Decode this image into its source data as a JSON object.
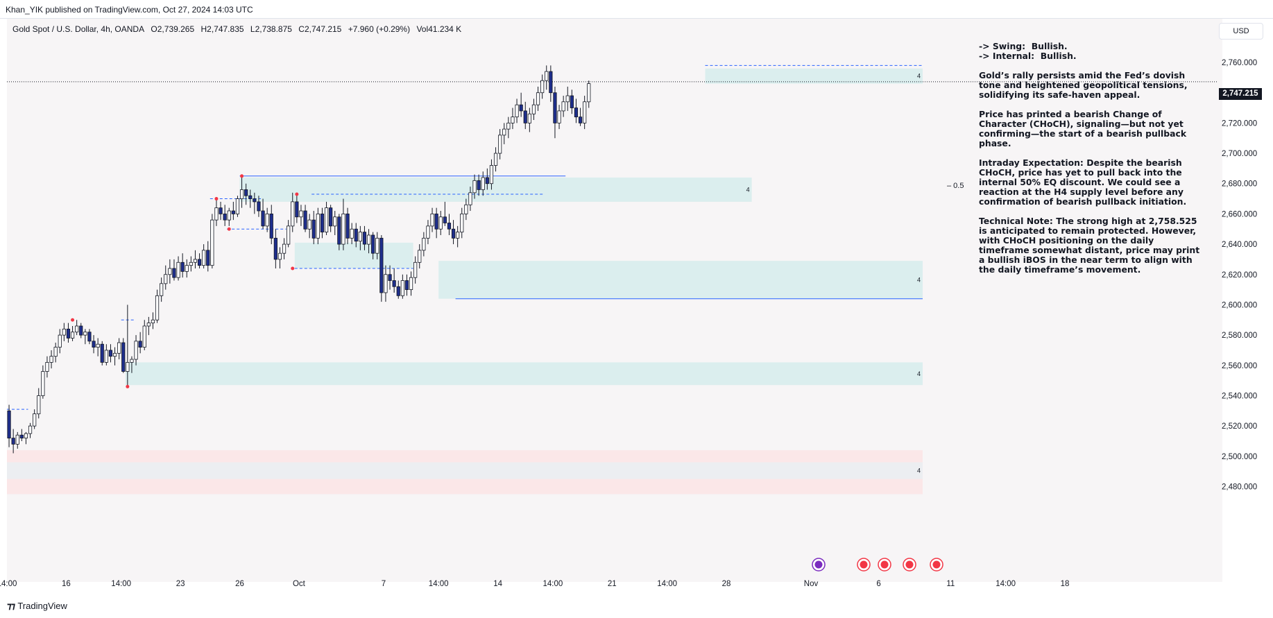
{
  "header": {
    "published": "Khan_YIK published on TradingView.com, Oct 27, 2024 14:03 UTC"
  },
  "legend": {
    "symbol": "Gold Spot / U.S. Dollar, 4h, OANDA",
    "open": "O2,739.265",
    "high": "H2,747.835",
    "low": "L2,738.875",
    "close": "C2,747.215",
    "change": "+7.960 (+0.29%)",
    "volume": "Vol41.234 K"
  },
  "currency": "USD",
  "last_price_label": "2,747.215",
  "notes": {
    "swing": "-> Swing:  Bullish.",
    "internal": "-> Internal:  Bullish.",
    "p1": "Gold’s rally persists amid the Fed’s dovish tone and heightened geopolitical tensions, solidifying its safe-haven appeal.",
    "p2": "Price has printed a bearish Change of Character (CHoCH), signaling—but not yet confirming—the start of a bearish pullback phase.",
    "p3": "Intraday Expectation: Despite the bearish CHoCH, price has yet to pull back into the internal 50% EQ discount. We could see a reaction at the H4 supply level before any confirmation of bearish pullback initiation.",
    "p4": "Technical Note: The strong high at 2,758.525 is anticipated to remain protected. However, with CHoCH positioning on the daily timeframe somewhat distant, price may print a bullish iBOS in the near term to align with the daily timeframe’s movement."
  },
  "brand": "TradingView",
  "chart_data": {
    "type": "candlestick",
    "symbol": "XAUUSD",
    "timeframe": "4h",
    "ylim": [
      2472,
      2772
    ],
    "y_ticks": [
      2480,
      2500,
      2520,
      2540,
      2560,
      2580,
      2600,
      2620,
      2640,
      2660,
      2680,
      2700,
      2720,
      2740,
      2760
    ],
    "y_tick_labels": [
      "2,480.000",
      "2,500.000",
      "2,520.000",
      "2,540.000",
      "2,560.000",
      "2,580.000",
      "2,600.000",
      "2,620.000",
      "2,640.000",
      "2,660.000",
      "2,680.000",
      "2,700.000",
      "2,720.000",
      "2,740.000",
      "2,760.000"
    ],
    "x_ticks": [
      {
        "label": "14:00",
        "bar": 0
      },
      {
        "label": "16",
        "bar": 14
      },
      {
        "label": "14:00",
        "bar": 27
      },
      {
        "label": "23",
        "bar": 41
      },
      {
        "label": "26",
        "bar": 55
      },
      {
        "label": "Oct",
        "bar": 69
      },
      {
        "label": "7",
        "bar": 89
      },
      {
        "label": "14:00",
        "bar": 102
      },
      {
        "label": "14",
        "bar": 116
      },
      {
        "label": "14:00",
        "bar": 129
      },
      {
        "label": "21",
        "bar": 143
      },
      {
        "label": "14:00",
        "bar": 156
      },
      {
        "label": "28",
        "bar": 170
      },
      {
        "label": "Nov",
        "bar": 190
      },
      {
        "label": "6",
        "bar": 206
      },
      {
        "label": "11",
        "bar": 223
      },
      {
        "label": "14:00",
        "bar": 236
      },
      {
        "label": "18",
        "bar": 250
      }
    ],
    "last_price": 2747.215,
    "ohlc": [
      [
        2530,
        2534,
        2506,
        2512
      ],
      [
        2512,
        2518,
        2502,
        2508
      ],
      [
        2508,
        2516,
        2505,
        2514
      ],
      [
        2514,
        2518,
        2510,
        2512
      ],
      [
        2512,
        2516,
        2508,
        2515
      ],
      [
        2515,
        2522,
        2512,
        2520
      ],
      [
        2520,
        2531,
        2518,
        2528
      ],
      [
        2528,
        2545,
        2525,
        2540
      ],
      [
        2540,
        2560,
        2538,
        2556
      ],
      [
        2556,
        2566,
        2552,
        2562
      ],
      [
        2562,
        2570,
        2558,
        2566
      ],
      [
        2566,
        2575,
        2562,
        2572
      ],
      [
        2572,
        2584,
        2568,
        2580
      ],
      [
        2580,
        2588,
        2576,
        2584
      ],
      [
        2584,
        2588,
        2575,
        2578
      ],
      [
        2578,
        2586,
        2576,
        2582
      ],
      [
        2582,
        2590,
        2580,
        2586
      ],
      [
        2586,
        2588,
        2578,
        2580
      ],
      [
        2580,
        2584,
        2574,
        2582
      ],
      [
        2582,
        2584,
        2574,
        2576
      ],
      [
        2576,
        2580,
        2568,
        2572
      ],
      [
        2572,
        2578,
        2566,
        2574
      ],
      [
        2574,
        2576,
        2560,
        2562
      ],
      [
        2562,
        2574,
        2560,
        2570
      ],
      [
        2570,
        2574,
        2562,
        2566
      ],
      [
        2566,
        2572,
        2560,
        2568
      ],
      [
        2568,
        2578,
        2564,
        2575
      ],
      [
        2575,
        2578,
        2555,
        2556
      ],
      [
        2556,
        2600,
        2546,
        2562
      ],
      [
        2562,
        2566,
        2555,
        2564
      ],
      [
        2564,
        2580,
        2560,
        2576
      ],
      [
        2576,
        2582,
        2568,
        2572
      ],
      [
        2572,
        2590,
        2570,
        2586
      ],
      [
        2586,
        2592,
        2580,
        2588
      ],
      [
        2588,
        2595,
        2584,
        2590
      ],
      [
        2590,
        2610,
        2588,
        2606
      ],
      [
        2606,
        2618,
        2602,
        2614
      ],
      [
        2614,
        2626,
        2610,
        2620
      ],
      [
        2620,
        2630,
        2614,
        2624
      ],
      [
        2624,
        2630,
        2616,
        2618
      ],
      [
        2618,
        2632,
        2616,
        2628
      ],
      [
        2628,
        2634,
        2618,
        2622
      ],
      [
        2622,
        2630,
        2618,
        2626
      ],
      [
        2626,
        2632,
        2622,
        2628
      ],
      [
        2628,
        2636,
        2624,
        2630
      ],
      [
        2630,
        2634,
        2624,
        2626
      ],
      [
        2626,
        2640,
        2624,
        2636
      ],
      [
        2636,
        2642,
        2622,
        2626
      ],
      [
        2626,
        2660,
        2624,
        2656
      ],
      [
        2656,
        2670,
        2652,
        2664
      ],
      [
        2664,
        2668,
        2656,
        2660
      ],
      [
        2660,
        2666,
        2652,
        2656
      ],
      [
        2656,
        2664,
        2652,
        2662
      ],
      [
        2662,
        2668,
        2656,
        2660
      ],
      [
        2660,
        2672,
        2658,
        2670
      ],
      [
        2670,
        2685,
        2664,
        2676
      ],
      [
        2676,
        2680,
        2666,
        2672
      ],
      [
        2672,
        2676,
        2664,
        2670
      ],
      [
        2670,
        2674,
        2660,
        2668
      ],
      [
        2668,
        2672,
        2658,
        2662
      ],
      [
        2662,
        2670,
        2650,
        2652
      ],
      [
        2652,
        2664,
        2648,
        2660
      ],
      [
        2660,
        2666,
        2640,
        2644
      ],
      [
        2644,
        2650,
        2624,
        2630
      ],
      [
        2630,
        2638,
        2624,
        2634
      ],
      [
        2634,
        2644,
        2630,
        2640
      ],
      [
        2640,
        2656,
        2638,
        2652
      ],
      [
        2652,
        2674,
        2648,
        2668
      ],
      [
        2668,
        2672,
        2654,
        2658
      ],
      [
        2658,
        2666,
        2652,
        2662
      ],
      [
        2662,
        2666,
        2648,
        2650
      ],
      [
        2650,
        2660,
        2644,
        2656
      ],
      [
        2656,
        2662,
        2640,
        2644
      ],
      [
        2644,
        2664,
        2640,
        2660
      ],
      [
        2660,
        2664,
        2644,
        2648
      ],
      [
        2648,
        2668,
        2646,
        2664
      ],
      [
        2664,
        2666,
        2648,
        2652
      ],
      [
        2652,
        2662,
        2646,
        2658
      ],
      [
        2658,
        2660,
        2636,
        2640
      ],
      [
        2640,
        2670,
        2636,
        2660
      ],
      [
        2660,
        2664,
        2640,
        2644
      ],
      [
        2644,
        2654,
        2640,
        2650
      ],
      [
        2650,
        2654,
        2638,
        2642
      ],
      [
        2642,
        2652,
        2636,
        2648
      ],
      [
        2648,
        2652,
        2636,
        2640
      ],
      [
        2640,
        2650,
        2634,
        2646
      ],
      [
        2646,
        2648,
        2630,
        2634
      ],
      [
        2634,
        2648,
        2630,
        2644
      ],
      [
        2644,
        2646,
        2602,
        2608
      ],
      [
        2608,
        2626,
        2602,
        2620
      ],
      [
        2620,
        2626,
        2610,
        2616
      ],
      [
        2616,
        2624,
        2608,
        2612
      ],
      [
        2612,
        2616,
        2604,
        2606
      ],
      [
        2606,
        2620,
        2604,
        2616
      ],
      [
        2616,
        2620,
        2606,
        2610
      ],
      [
        2610,
        2622,
        2606,
        2618
      ],
      [
        2618,
        2632,
        2614,
        2628
      ],
      [
        2628,
        2640,
        2624,
        2636
      ],
      [
        2636,
        2648,
        2632,
        2644
      ],
      [
        2644,
        2656,
        2640,
        2652
      ],
      [
        2652,
        2664,
        2648,
        2660
      ],
      [
        2660,
        2664,
        2644,
        2650
      ],
      [
        2650,
        2662,
        2646,
        2658
      ],
      [
        2658,
        2668,
        2652,
        2654
      ],
      [
        2654,
        2660,
        2646,
        2650
      ],
      [
        2650,
        2656,
        2640,
        2644
      ],
      [
        2644,
        2652,
        2638,
        2648
      ],
      [
        2648,
        2664,
        2644,
        2660
      ],
      [
        2660,
        2670,
        2656,
        2666
      ],
      [
        2666,
        2678,
        2662,
        2674
      ],
      [
        2674,
        2686,
        2670,
        2682
      ],
      [
        2682,
        2686,
        2672,
        2676
      ],
      [
        2676,
        2688,
        2672,
        2684
      ],
      [
        2684,
        2690,
        2676,
        2680
      ],
      [
        2680,
        2696,
        2676,
        2692
      ],
      [
        2692,
        2704,
        2688,
        2700
      ],
      [
        2700,
        2716,
        2696,
        2712
      ],
      [
        2712,
        2720,
        2706,
        2716
      ],
      [
        2716,
        2724,
        2710,
        2720
      ],
      [
        2720,
        2730,
        2716,
        2724
      ],
      [
        2724,
        2736,
        2720,
        2732
      ],
      [
        2732,
        2740,
        2724,
        2728
      ],
      [
        2728,
        2734,
        2716,
        2720
      ],
      [
        2720,
        2730,
        2714,
        2726
      ],
      [
        2726,
        2736,
        2722,
        2732
      ],
      [
        2732,
        2744,
        2728,
        2740
      ],
      [
        2740,
        2752,
        2736,
        2748
      ],
      [
        2748,
        2758,
        2742,
        2754
      ],
      [
        2754,
        2758,
        2734,
        2740
      ],
      [
        2740,
        2744,
        2710,
        2720
      ],
      [
        2720,
        2732,
        2716,
        2728
      ],
      [
        2728,
        2738,
        2724,
        2734
      ],
      [
        2734,
        2744,
        2728,
        2738
      ],
      [
        2738,
        2742,
        2726,
        2730
      ],
      [
        2730,
        2736,
        2720,
        2724
      ],
      [
        2724,
        2730,
        2718,
        2720
      ],
      [
        2720,
        2738,
        2716,
        2734
      ],
      [
        2734,
        2748,
        2730,
        2746
      ]
    ],
    "zones": [
      {
        "from_bar": 165,
        "to": 262,
        "top": 2756,
        "bottom": 2746,
        "color": "#dbeeee",
        "label": "4"
      },
      {
        "from_bar": 55,
        "to": 176,
        "top": 2684,
        "bottom": 2668,
        "color": "#dbeeee",
        "label": "4"
      },
      {
        "from_bar": 68,
        "to": 96,
        "top": 2641,
        "bottom": 2624,
        "color": "#dbeeee",
        "label": ""
      },
      {
        "from_bar": 102,
        "to": 262,
        "top": 2629,
        "bottom": 2604,
        "color": "#dbeeee",
        "label": "4"
      },
      {
        "from_bar": 28,
        "to": 262,
        "top": 2562,
        "bottom": 2547,
        "color": "#dbeeee",
        "label": "4"
      },
      {
        "from_bar": -1,
        "to": 262,
        "top": 2504,
        "bottom": 2496,
        "color": "#fbe7e8",
        "label": ""
      },
      {
        "from_bar": -1,
        "to": 262,
        "top": 2496,
        "bottom": 2485,
        "color": "#eceef1",
        "label": "4"
      },
      {
        "from_bar": -1,
        "to": 262,
        "top": 2485,
        "bottom": 2475,
        "color": "#fbe7e8",
        "label": ""
      }
    ],
    "eq_label": "0.5",
    "eq_level": 2679
  }
}
